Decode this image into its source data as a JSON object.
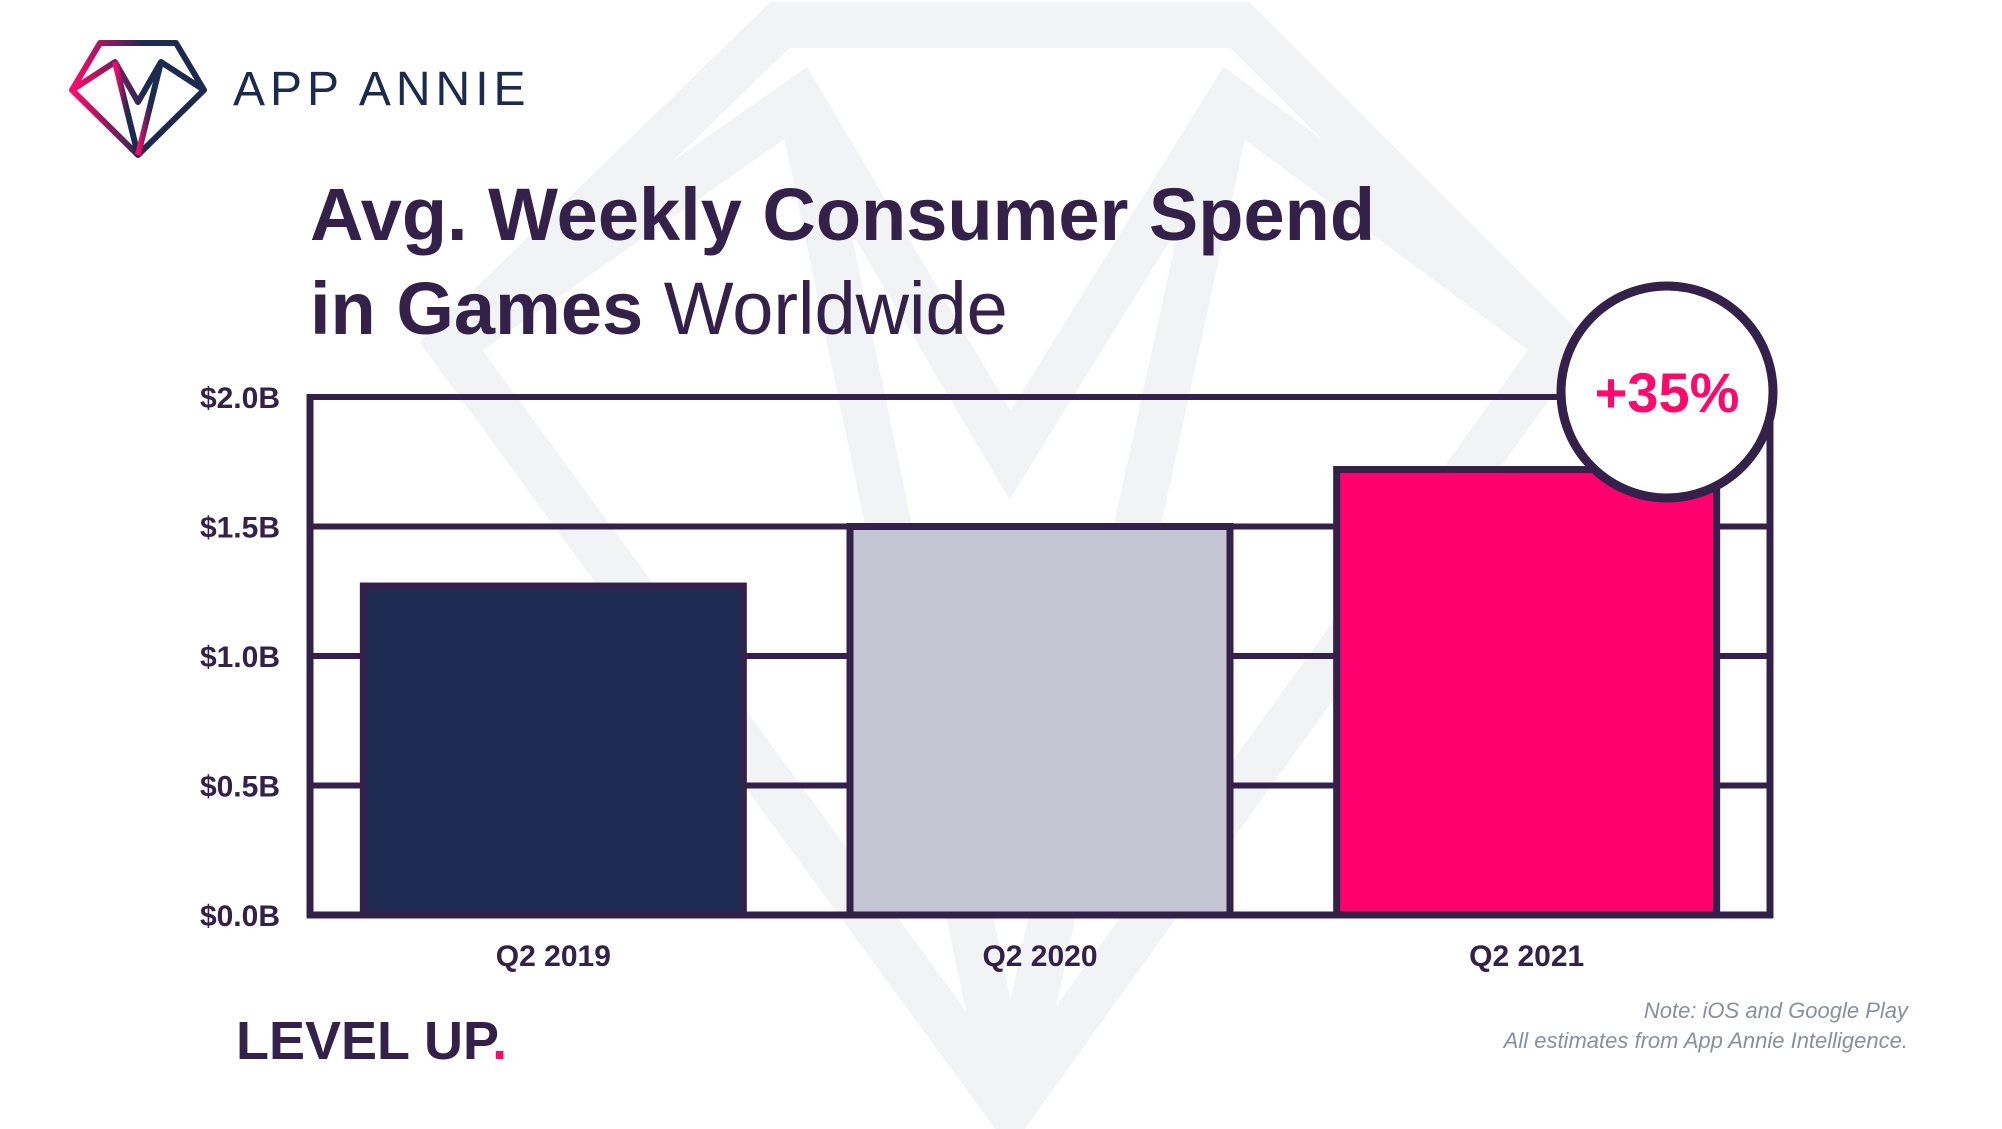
{
  "brand": {
    "name": "APP ANNIE",
    "logo_icon": "diamond-logo-icon",
    "gradient_colors": [
      "#ff0a6c",
      "#1c2a4f"
    ]
  },
  "title": {
    "line1": "Avg. Weekly Consumer Spend",
    "line2_bold": "in Games",
    "line2_light": "Worldwide"
  },
  "footer": {
    "tagline": "LEVEL UP",
    "tagline_dot": ".",
    "note_line1": "Note: iOS and Google Play",
    "note_line2": "All estimates from App Annie Intelligence."
  },
  "colors": {
    "text": "#33214a",
    "accent": "#ff0a6c",
    "watermark": "#f2f3f5"
  },
  "chart_data": {
    "type": "bar",
    "categories": [
      "Q2 2019",
      "Q2 2020",
      "Q2 2021"
    ],
    "values": [
      1.27,
      1.5,
      1.72
    ],
    "bar_colors": [
      "#1e2b52",
      "#c4c7d3",
      "#ff006e"
    ],
    "unit": "B",
    "yticks": [
      "$0.0B",
      "$0.5B",
      "$1.0B",
      "$1.5B",
      "$2.0B"
    ],
    "ytick_values": [
      0,
      0.5,
      1.0,
      1.5,
      2.0
    ],
    "ylim": [
      0,
      2.0
    ],
    "grid": true,
    "annotation": "+35%",
    "annotation_color": "#ff0a6c"
  }
}
